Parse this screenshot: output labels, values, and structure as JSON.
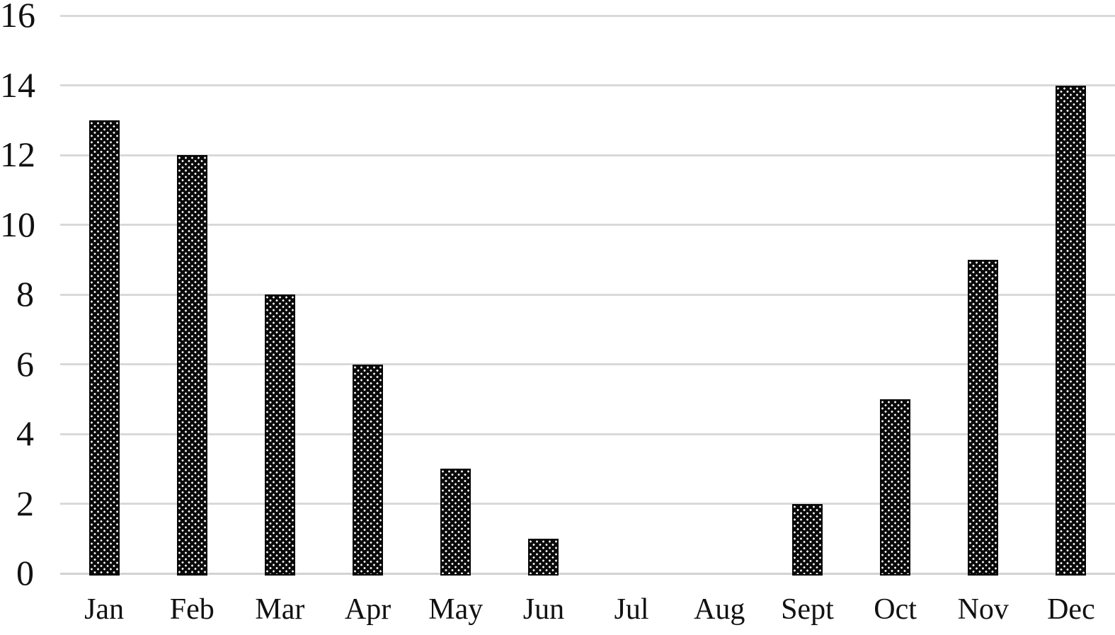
{
  "chart_data": {
    "type": "bar",
    "title": "",
    "xlabel": "",
    "ylabel": "",
    "categories": [
      "Jan",
      "Feb",
      "Mar",
      "Apr",
      "May",
      "Jun",
      "Jul",
      "Aug",
      "Sept",
      "Oct",
      "Nov",
      "Dec"
    ],
    "values": [
      13,
      12,
      8,
      6,
      3,
      1,
      0,
      0,
      2,
      5,
      9,
      14
    ],
    "ylim": [
      0,
      16
    ],
    "yticks": [
      0,
      2,
      4,
      6,
      8,
      10,
      12,
      14,
      16
    ],
    "grid": true,
    "legend_position": "none",
    "colors": {
      "bar_fill": "#0a0a0a",
      "bar_pattern_dot": "#ffffff",
      "gridline": "#d9d9d9",
      "tick_text": "#111111",
      "background": "#ffffff"
    },
    "bar_pattern": "offset-white-dots-on-black"
  }
}
